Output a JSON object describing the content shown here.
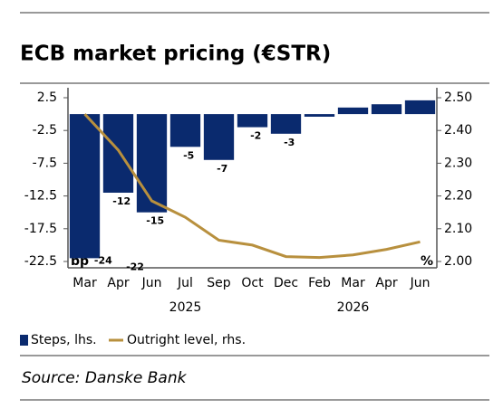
{
  "chart_data": {
    "type": "bar-line",
    "title": "ECB market pricing (€STR)",
    "categories": [
      "Mar",
      "Apr",
      "Jun",
      "Jul",
      "Sep",
      "Oct",
      "Dec",
      "Feb",
      "Mar",
      "Apr",
      "Jun"
    ],
    "years": [
      "2025",
      "2026"
    ],
    "series": [
      {
        "name": "Steps, lhs.",
        "color": "#0a2a6e",
        "kind": "bar",
        "values": [
          -22,
          -12,
          -15,
          -5,
          -7,
          -2,
          -3,
          -0.4,
          1,
          1.5,
          2.1
        ],
        "value_labels": [
          "-22",
          "-12",
          "-15",
          "-5",
          "-7",
          "-2",
          "-3",
          null,
          null,
          null,
          null
        ]
      },
      {
        "name": "Outright level, rhs.",
        "color": "#b8903e",
        "kind": "line",
        "axis": "y2",
        "values": [
          2.45,
          2.34,
          2.185,
          2.135,
          2.065,
          2.05,
          2.015,
          2.012,
          2.02,
          2.037,
          2.06
        ]
      }
    ],
    "annotations": [
      "-24"
    ],
    "ylabel": "bp",
    "y2label": "%",
    "ylim": [
      2.5,
      -22.5
    ],
    "yticks": [
      2.5,
      -2.5,
      -7.5,
      -12.5,
      -17.5,
      -22.5
    ],
    "y2lim": [
      2.5,
      2.0
    ],
    "y2ticks": [
      {
        "value": 2.5,
        "label": "2.50"
      },
      {
        "value": 2.4,
        "label": "2.40"
      },
      {
        "value": 2.3,
        "label": "2.30"
      },
      {
        "value": 2.2,
        "label": "2.20"
      },
      {
        "value": 2.1,
        "label": "2.10"
      },
      {
        "value": 2.0,
        "label": "2.00"
      }
    ],
    "legend": "bottom-left",
    "source": "Source: Danske Bank"
  }
}
